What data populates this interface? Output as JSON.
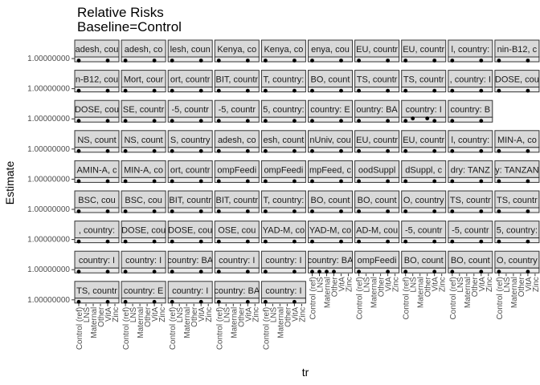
{
  "chart_data": {
    "type": "scatter",
    "title": "Relative Risks",
    "subtitle": "Baseline=Control",
    "xlabel": "tr",
    "ylabel": "Estimate",
    "y_tick_label": "1.00000000",
    "x_tick_labels": [
      "Control (ref)",
      "LNS",
      "Maternal",
      "Other",
      "VitA",
      "Zinc"
    ],
    "grid": false,
    "panel_background": "#ebebeb",
    "strip_background": "#d9d9d9",
    "point_color": "#000000",
    "facets": [
      [
        "adesh, cou",
        "adesh, co",
        "lesh, coun",
        "Kenya, co",
        "Kenya, co",
        "enya, cou",
        "EU, countr",
        "EU, countr",
        "l, country:",
        "nin-B12, c"
      ],
      [
        "n-B12, cou",
        "Mort, cour",
        "ort, countr",
        "BIT, countr",
        "T, country:",
        "BO, count",
        "TS, countr",
        "TS, countr",
        ", country: I",
        "DOSE, cou"
      ],
      [
        "DOSE, cou",
        "SE, countr",
        "-5, countr",
        "-5, countr",
        "5, country:",
        "country: E",
        "ountry: BA",
        "country: I",
        "country: B"
      ],
      [
        "NS, count",
        "NS, count",
        "S, country",
        "adesh, co",
        "esh, count",
        "nUniv, cou",
        "EU, countr",
        "EU, countr",
        "l, country:",
        "MIN-A, co"
      ],
      [
        "AMIN-A, c",
        "MIN-A, co",
        "ort, countr",
        "ompFeedi",
        "ompFeedi",
        "mpFeed, c",
        "oodSuppl",
        "dSuppl, c",
        "dry: TANZ",
        "y: TANZAN"
      ],
      [
        "BSC, cou",
        "BSC, cou",
        "BIT, countr",
        "BIT, countr",
        "T, country:",
        "BO, count",
        "BO, count",
        "O, country",
        "TS, countr",
        "TS, countr"
      ],
      [
        ", country:",
        "DOSE, cou",
        "DOSE, cou",
        "OSE, cou",
        "YAD-M, co",
        "YAD-M, co",
        "AD-M, cou",
        "-5, countr",
        "-5, countr",
        "5, country:"
      ],
      [
        "country: I",
        "country: I",
        "country: BA",
        "country: I",
        "country: I",
        "country: BA",
        "ompFeedi",
        "BO, count",
        "BO, count",
        "O, country"
      ],
      [
        "TS, countr",
        "country: E",
        "country: I",
        "country: BA",
        "country: I"
      ]
    ],
    "estimates": [
      [
        [
          [
            0,
            1
          ],
          [
            4,
            1
          ]
        ],
        [
          [
            0,
            1
          ],
          [
            4,
            1
          ]
        ],
        [
          [
            0,
            1
          ],
          [
            4,
            1
          ]
        ],
        [
          [
            0,
            1
          ],
          [
            4,
            1
          ]
        ],
        [
          [
            0,
            1
          ],
          [
            4,
            1
          ]
        ],
        [
          [
            0,
            1
          ],
          [
            4,
            1
          ]
        ],
        [
          [
            0,
            1
          ],
          [
            4,
            1
          ]
        ],
        [
          [
            0,
            1
          ],
          [
            4,
            1
          ]
        ],
        [
          [
            0,
            1
          ],
          [
            4,
            1
          ]
        ],
        [
          [
            0,
            1
          ],
          [
            4,
            1
          ]
        ]
      ],
      [
        [
          [
            0,
            1
          ],
          [
            4,
            1
          ]
        ],
        [
          [
            0,
            1
          ],
          [
            4,
            1
          ]
        ],
        [
          [
            0,
            1
          ],
          [
            4,
            1
          ]
        ],
        [
          [
            0,
            1
          ],
          [
            4,
            1
          ]
        ],
        [
          [
            0,
            1
          ],
          [
            4,
            1
          ]
        ],
        [
          [
            0,
            1
          ],
          [
            4,
            1
          ]
        ],
        [
          [
            0,
            1
          ],
          [
            4,
            1
          ]
        ],
        [
          [
            0,
            1
          ],
          [
            4,
            1
          ]
        ],
        [
          [
            0,
            1
          ],
          [
            4,
            1
          ]
        ],
        [
          [
            0,
            1
          ],
          [
            4,
            1
          ]
        ]
      ],
      [
        [
          [
            0,
            1
          ],
          [
            4,
            1
          ]
        ],
        [
          [
            0,
            1
          ],
          [
            4,
            1
          ]
        ],
        [
          [
            0,
            1
          ],
          [
            4,
            1
          ]
        ],
        [
          [
            0,
            1
          ],
          [
            4,
            1
          ]
        ],
        [
          [
            0,
            1
          ],
          [
            4,
            1
          ]
        ],
        [
          [
            0,
            1
          ],
          [
            4,
            1
          ]
        ],
        [
          [
            0,
            1
          ],
          [
            4,
            1
          ]
        ],
        [
          [
            0,
            1
          ],
          [
            1,
            1.4
          ],
          [
            3,
            1.4
          ],
          [
            4,
            1
          ]
        ],
        [
          [
            0,
            1
          ],
          [
            4,
            1
          ]
        ]
      ],
      [
        [
          [
            0,
            1
          ],
          [
            4,
            1
          ]
        ],
        [
          [
            0,
            1
          ],
          [
            4,
            1
          ]
        ],
        [
          [
            0,
            1
          ],
          [
            4,
            1
          ]
        ],
        [
          [
            0,
            1
          ],
          [
            4,
            1
          ]
        ],
        [
          [
            0,
            1
          ],
          [
            4,
            1
          ]
        ],
        [
          [
            0,
            1
          ],
          [
            4,
            1
          ]
        ],
        [
          [
            0,
            1
          ],
          [
            4,
            1
          ]
        ],
        [
          [
            0,
            1
          ],
          [
            4,
            1
          ]
        ],
        [
          [
            0,
            1
          ],
          [
            4,
            1
          ]
        ],
        [
          [
            0,
            1
          ],
          [
            4,
            1
          ]
        ]
      ],
      [
        [
          [
            0,
            1
          ],
          [
            4,
            1
          ]
        ],
        [
          [
            0,
            1
          ],
          [
            4,
            1
          ]
        ],
        [
          [
            0,
            1
          ],
          [
            4,
            1
          ]
        ],
        [
          [
            0,
            1
          ],
          [
            4,
            1
          ]
        ],
        [
          [
            0,
            1
          ],
          [
            4,
            1
          ]
        ],
        [
          [
            0,
            1
          ],
          [
            4,
            1
          ]
        ],
        [
          [
            0,
            1
          ],
          [
            4,
            1
          ]
        ],
        [
          [
            0,
            1
          ],
          [
            4,
            1
          ]
        ],
        [
          [
            0,
            1
          ],
          [
            4,
            1
          ]
        ],
        [
          [
            0,
            1
          ],
          [
            4,
            1
          ]
        ]
      ],
      [
        [
          [
            0,
            1
          ],
          [
            4,
            1
          ]
        ],
        [
          [
            0,
            1
          ],
          [
            4,
            1
          ]
        ],
        [
          [
            0,
            1
          ],
          [
            4,
            1
          ]
        ],
        [
          [
            0,
            1
          ],
          [
            4,
            1
          ]
        ],
        [
          [
            0,
            1
          ],
          [
            4,
            1
          ]
        ],
        [
          [
            0,
            1
          ],
          [
            4,
            1
          ]
        ],
        [
          [
            0,
            1
          ],
          [
            4,
            1
          ]
        ],
        [
          [
            0,
            1
          ],
          [
            4,
            1
          ]
        ],
        [
          [
            0,
            1
          ],
          [
            4,
            1
          ]
        ],
        [
          [
            0,
            1
          ],
          [
            4,
            1
          ]
        ]
      ],
      [
        [
          [
            0,
            1
          ],
          [
            4,
            1
          ]
        ],
        [
          [
            0,
            1
          ],
          [
            4,
            1
          ]
        ],
        [
          [
            0,
            1
          ],
          [
            4,
            1
          ]
        ],
        [
          [
            0,
            1
          ],
          [
            4,
            1
          ]
        ],
        [
          [
            0,
            1
          ],
          [
            4,
            1
          ]
        ],
        [
          [
            0,
            1
          ],
          [
            4,
            1
          ]
        ],
        [
          [
            0,
            1
          ],
          [
            4,
            1
          ]
        ],
        [
          [
            0,
            1
          ],
          [
            4,
            1
          ]
        ],
        [
          [
            0,
            1
          ],
          [
            4,
            1
          ]
        ],
        [
          [
            0,
            1
          ],
          [
            4,
            1
          ]
        ]
      ],
      [
        [
          [
            0,
            1
          ],
          [
            4,
            1
          ]
        ],
        [
          [
            0,
            1
          ],
          [
            4,
            1
          ]
        ],
        [
          [
            0,
            1
          ],
          [
            4,
            1
          ]
        ],
        [
          [
            0,
            1
          ],
          [
            4,
            1
          ]
        ],
        [
          [
            0,
            1
          ],
          [
            4,
            1
          ]
        ],
        [
          [
            0,
            1
          ],
          [
            1,
            1
          ],
          [
            2,
            1
          ],
          [
            3,
            1
          ]
        ],
        [
          [
            0,
            1
          ],
          [
            4,
            1
          ]
        ],
        [
          [
            0,
            1
          ],
          [
            4,
            1
          ]
        ],
        [
          [
            0,
            1
          ],
          [
            4,
            1
          ]
        ],
        [
          [
            0,
            1
          ],
          [
            4,
            1
          ]
        ]
      ],
      [
        [
          [
            0,
            1
          ],
          [
            4,
            1
          ]
        ],
        [
          [
            0,
            1
          ],
          [
            4,
            1
          ]
        ],
        [
          [
            0,
            1
          ],
          [
            4,
            1
          ]
        ],
        [
          [
            0,
            1
          ],
          [
            4,
            1
          ]
        ],
        [
          [
            0,
            1
          ],
          [
            4,
            1
          ]
        ]
      ]
    ]
  }
}
